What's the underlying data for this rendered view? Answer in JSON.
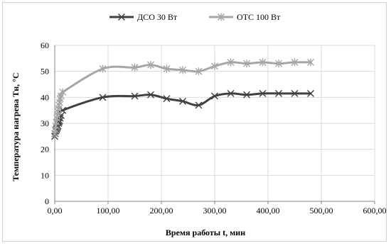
{
  "chart_data": {
    "type": "line",
    "xlabel": "Время работы t, мин",
    "ylabel": "Температура нагрева Тн, °С",
    "xlim": [
      0,
      600
    ],
    "ylim": [
      0,
      60
    ],
    "x_ticks": [
      "0,00",
      "100,00",
      "200,00",
      "300,00",
      "400,00",
      "500,00",
      "600,00"
    ],
    "y_ticks": [
      "0",
      "10",
      "20",
      "30",
      "40",
      "50",
      "60"
    ],
    "grid": true,
    "legend_position": "top",
    "series": [
      {
        "name": "ДСО 30 Вт",
        "color": "#404040",
        "marker": "x-mark",
        "points": [
          [
            0,
            25
          ],
          [
            1,
            26
          ],
          [
            2,
            27
          ],
          [
            3,
            27.5
          ],
          [
            4,
            28
          ],
          [
            5,
            28.5
          ],
          [
            6,
            29
          ],
          [
            7,
            30
          ],
          [
            8,
            30.5
          ],
          [
            9,
            31
          ],
          [
            10,
            32
          ],
          [
            12,
            33
          ],
          [
            15,
            35
          ],
          [
            90,
            40
          ],
          [
            150,
            40.5
          ],
          [
            180,
            41
          ],
          [
            210,
            39.5
          ],
          [
            240,
            38.5
          ],
          [
            270,
            37
          ],
          [
            300,
            40.5
          ],
          [
            330,
            41.5
          ],
          [
            360,
            41
          ],
          [
            390,
            41.5
          ],
          [
            420,
            41.5
          ],
          [
            450,
            41.5
          ],
          [
            480,
            41.5
          ]
        ]
      },
      {
        "name": "ОТС  100 Вт",
        "color": "#a6a6a6",
        "marker": "star-mark",
        "points": [
          [
            0,
            26
          ],
          [
            1,
            27.5
          ],
          [
            2,
            29
          ],
          [
            3,
            30.5
          ],
          [
            4,
            32
          ],
          [
            5,
            33
          ],
          [
            6,
            34.5
          ],
          [
            7,
            35.5
          ],
          [
            8,
            37
          ],
          [
            9,
            38
          ],
          [
            10,
            39.5
          ],
          [
            12,
            40.5
          ],
          [
            15,
            42
          ],
          [
            90,
            51
          ],
          [
            150,
            51.5
          ],
          [
            180,
            52.5
          ],
          [
            210,
            51
          ],
          [
            240,
            50.5
          ],
          [
            270,
            50
          ],
          [
            300,
            52
          ],
          [
            330,
            53.5
          ],
          [
            360,
            53
          ],
          [
            390,
            53.5
          ],
          [
            420,
            53
          ],
          [
            450,
            53.5
          ],
          [
            480,
            53.5
          ]
        ]
      }
    ]
  }
}
